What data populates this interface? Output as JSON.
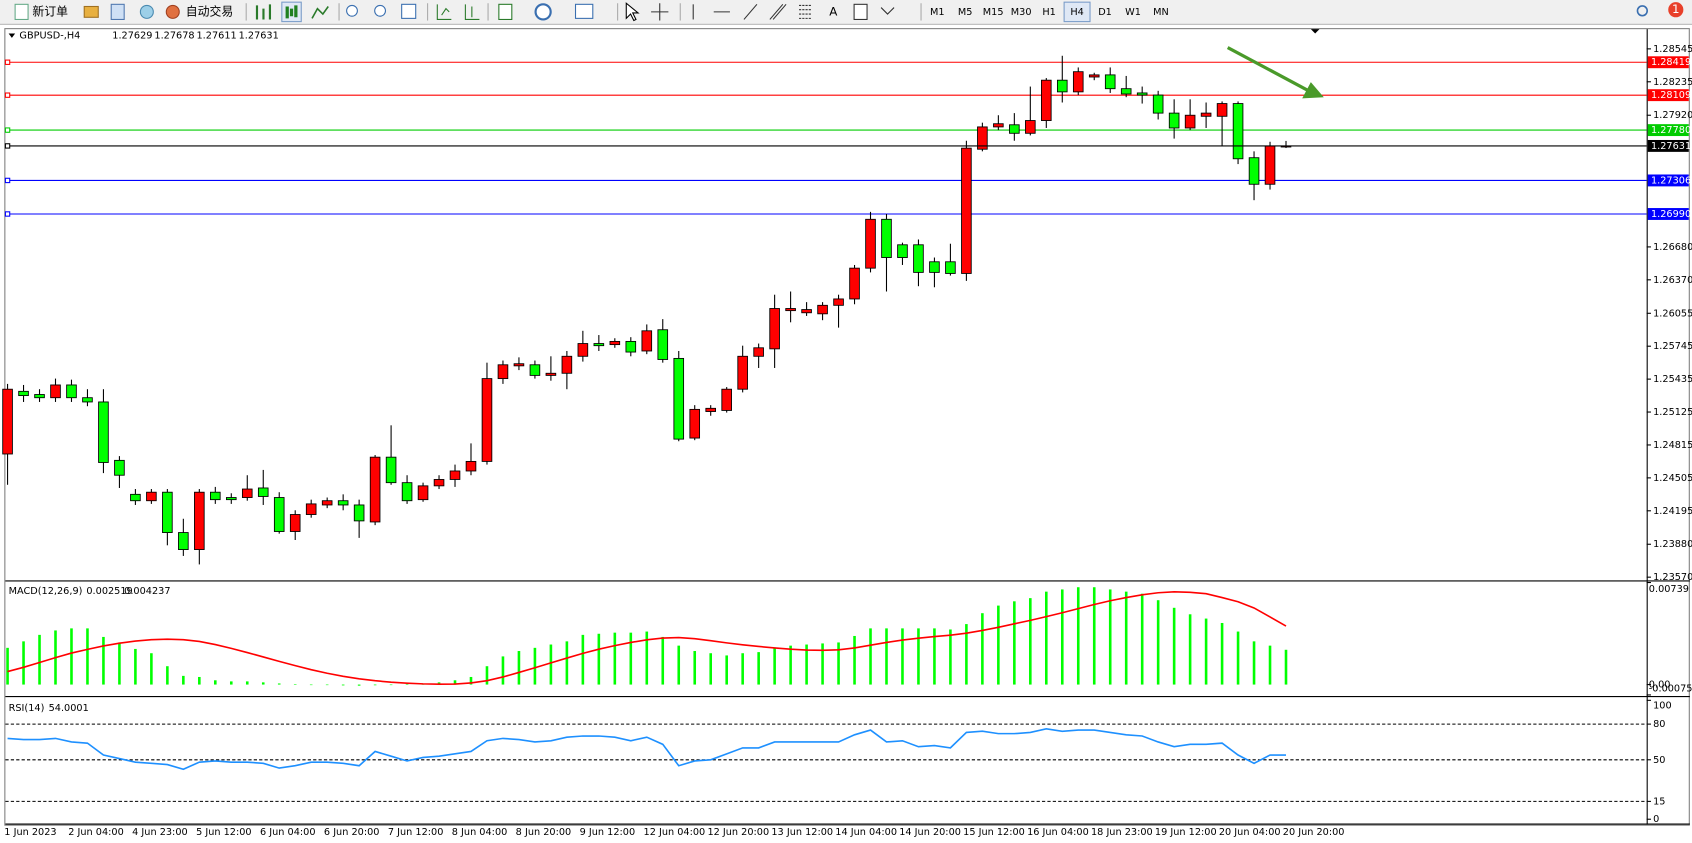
{
  "toolbar": {
    "new_order": "新订单",
    "auto_trading": "自动交易",
    "timeframes": [
      "M1",
      "M5",
      "M15",
      "M30",
      "H1",
      "H4",
      "D1",
      "W1",
      "MN"
    ],
    "active_timeframe": "H4",
    "notifications": 1
  },
  "chart_data": [
    {
      "type": "candlestick",
      "symbol": "GBPUSD-,H4",
      "categories": [
        "1 Jun 2023",
        null,
        null,
        null,
        "2 Jun 04:00",
        null,
        null,
        null,
        "4 Jun 23:00",
        null,
        null,
        null,
        "5 Jun 12:00",
        null,
        null,
        null,
        "6 Jun 04:00",
        null,
        null,
        null,
        "6 Jun 20:00",
        null,
        null,
        null,
        "7 Jun 12:00",
        null,
        null,
        null,
        "8 Jun 04:00",
        null,
        null,
        null,
        "8 Jun 20:00",
        null,
        null,
        null,
        "9 Jun 12:00",
        null,
        null,
        null,
        "12 Jun 04:00",
        null,
        null,
        null,
        "12 Jun 20:00",
        null,
        null,
        null,
        "13 Jun 12:00",
        null,
        null,
        null,
        "14 Jun 04:00",
        null,
        null,
        null,
        "14 Jun 20:00",
        null,
        null,
        null,
        "15 Jun 12:00",
        null,
        null,
        null,
        "16 Jun 04:00",
        null,
        null,
        null,
        "18 Jun 23:00",
        null,
        null,
        null,
        "19 Jun 12:00",
        null,
        null,
        null,
        "20 Jun 04:00",
        null,
        null,
        null,
        "20 Jun 20:00"
      ],
      "open": [
        1.2473,
        1.2532,
        1.2529,
        1.2526,
        1.2538,
        1.2526,
        1.2522,
        1.2467,
        1.2435,
        1.2429,
        1.2437,
        1.2399,
        1.2383,
        1.2437,
        1.2432,
        1.2432,
        1.2441,
        1.2432,
        1.24,
        1.2416,
        1.2425,
        1.2429,
        1.2425,
        1.2409,
        1.247,
        1.2446,
        1.243,
        1.2443,
        1.2449,
        1.2457,
        1.2466,
        1.2544,
        1.2556,
        1.2557,
        1.2547,
        1.2549,
        1.2565,
        1.2577,
        1.2576,
        1.2579,
        1.257,
        1.259,
        1.2563,
        1.2488,
        1.2513,
        1.2514,
        1.2534,
        1.2565,
        1.2572,
        1.2608,
        1.2606,
        1.2605,
        1.2613,
        1.2619,
        1.2648,
        1.2694,
        1.267,
        1.267,
        1.2654,
        1.2654,
        1.2643,
        1.276,
        1.2781,
        1.2783,
        1.2775,
        1.2787,
        1.2825,
        1.2814,
        1.2828,
        1.283,
        1.2817,
        1.2813,
        1.2811,
        1.2794,
        1.278,
        1.2791,
        1.2791,
        1.2803,
        1.2752,
        1.2727,
        1.27629
      ],
      "high": [
        1.2539,
        1.2538,
        1.2534,
        1.2544,
        1.2543,
        1.2534,
        1.2534,
        1.2471,
        1.244,
        1.244,
        1.244,
        1.2412,
        1.244,
        1.2442,
        1.2436,
        1.2453,
        1.2458,
        1.2437,
        1.242,
        1.243,
        1.2432,
        1.2435,
        1.243,
        1.2472,
        1.25,
        1.2453,
        1.2446,
        1.2453,
        1.2463,
        1.2483,
        1.2559,
        1.2561,
        1.2564,
        1.2561,
        1.2565,
        1.257,
        1.2589,
        1.2585,
        1.2582,
        1.2583,
        1.2595,
        1.26,
        1.257,
        1.2519,
        1.2519,
        1.2536,
        1.2575,
        1.2577,
        1.2623,
        1.2626,
        1.2616,
        1.2616,
        1.2623,
        1.2651,
        1.2701,
        1.2699,
        1.2672,
        1.2675,
        1.2658,
        1.2671,
        1.2768,
        1.2785,
        1.2792,
        1.2794,
        1.2819,
        1.2827,
        1.2848,
        1.2837,
        1.2832,
        1.2837,
        1.2829,
        1.2819,
        1.2815,
        1.2807,
        1.2807,
        1.2804,
        1.2805,
        1.2805,
        1.2758,
        1.2767,
        1.27678
      ],
      "low": [
        1.2444,
        1.2522,
        1.2522,
        1.2522,
        1.2522,
        1.2518,
        1.2455,
        1.2441,
        1.2425,
        1.2426,
        1.2387,
        1.2377,
        1.2369,
        1.2426,
        1.2426,
        1.2429,
        1.2425,
        1.2398,
        1.2392,
        1.2413,
        1.2422,
        1.242,
        1.2394,
        1.2406,
        1.2444,
        1.2426,
        1.2428,
        1.244,
        1.2442,
        1.2453,
        1.2463,
        1.2539,
        1.2552,
        1.2544,
        1.2542,
        1.2534,
        1.256,
        1.257,
        1.2573,
        1.2565,
        1.2567,
        1.2559,
        1.2485,
        1.2486,
        1.2509,
        1.2512,
        1.2531,
        1.2554,
        1.2554,
        1.2597,
        1.2603,
        1.2599,
        1.2592,
        1.2614,
        1.2644,
        1.2626,
        1.2651,
        1.2631,
        1.263,
        1.2641,
        1.2636,
        1.2758,
        1.2778,
        1.2768,
        1.2773,
        1.278,
        1.2804,
        1.2811,
        1.2825,
        1.2813,
        1.2809,
        1.2803,
        1.2788,
        1.277,
        1.2778,
        1.278,
        1.2763,
        1.2746,
        1.2712,
        1.2722,
        1.27611
      ],
      "close": [
        1.2534,
        1.2528,
        1.2526,
        1.2538,
        1.2526,
        1.2522,
        1.2465,
        1.2453,
        1.2429,
        1.2437,
        1.2399,
        1.2383,
        1.2437,
        1.243,
        1.243,
        1.244,
        1.2433,
        1.24,
        1.2416,
        1.2426,
        1.2429,
        1.2425,
        1.241,
        1.247,
        1.2446,
        1.2429,
        1.2443,
        1.2449,
        1.2457,
        1.2466,
        1.2544,
        1.2557,
        1.2558,
        1.2547,
        1.2549,
        1.2565,
        1.2577,
        1.2575,
        1.2579,
        1.2569,
        1.2589,
        1.2562,
        1.2487,
        1.2515,
        1.2516,
        1.2534,
        1.2565,
        1.2573,
        1.261,
        1.261,
        1.2609,
        1.2613,
        1.2619,
        1.2648,
        1.2694,
        1.2658,
        1.2658,
        1.2644,
        1.2644,
        1.2643,
        1.2761,
        1.2781,
        1.2784,
        1.2775,
        1.2787,
        1.2825,
        1.2814,
        1.2833,
        1.283,
        1.2817,
        1.2812,
        1.2811,
        1.2794,
        1.278,
        1.2792,
        1.2794,
        1.2803,
        1.2751,
        1.2727,
        1.2763,
        1.27631
      ],
      "up_color": "#ff0000",
      "down_color": "#00ff00",
      "current_price_color": "#000000",
      "ylim": [
        1.2355,
        1.2871
      ],
      "yticks": [
        1.28545,
        1.28235,
        {
          "value": 1.2792,
          "label": "1.27920"
        },
        {
          "value": 1.2668,
          "label": "1.26680"
        },
        {
          "value": 1.2637,
          "label": "1.26370"
        },
        1.26055,
        1.25745,
        1.25435,
        1.25125,
        1.24815,
        1.24505,
        1.24195,
        {
          "value": 1.2388,
          "label": "1.23880"
        },
        {
          "value": 1.2357,
          "label": "1.23570"
        }
      ],
      "levels": [
        {
          "value": 1.28419,
          "color": "#ff0000"
        },
        {
          "value": 1.28109,
          "color": "#ff0000"
        },
        {
          "value": 1.2778,
          "label": "1.27780",
          "color": "#00cc00"
        },
        {
          "value": 1.27306,
          "color": "#0000ff"
        },
        {
          "value": 1.2699,
          "label": "1.26990",
          "color": "#0000ff"
        }
      ],
      "grid": false
    },
    {
      "type": "macd",
      "title": "MACD(12,26,9)",
      "histogram": [
        0.00266,
        0.00313,
        0.0036,
        0.00392,
        0.00407,
        0.00407,
        0.00345,
        0.00305,
        0.00258,
        0.00227,
        0.00133,
        0.00063,
        0.00055,
        0.00031,
        0.00023,
        0.00023,
        0.00016,
        8e-05,
        3e-05,
        -2e-05,
        -4e-05,
        -6e-05,
        -8e-05,
        -5e-05,
        -2e-05,
        1e-05,
        3e-05,
        0.00016,
        0.00031,
        0.00055,
        0.00133,
        0.00204,
        0.00243,
        0.00266,
        0.0029,
        0.00313,
        0.0036,
        0.00368,
        0.00376,
        0.00376,
        0.00384,
        0.00345,
        0.00282,
        0.00243,
        0.00227,
        0.00211,
        0.00227,
        0.00235,
        0.00266,
        0.00282,
        0.0029,
        0.00298,
        0.00305,
        0.00352,
        0.00407,
        0.00407,
        0.00407,
        0.00407,
        0.00407,
        0.00399,
        0.00438,
        0.00517,
        0.00572,
        0.00603,
        0.00626,
        0.00673,
        0.00689,
        0.00705,
        0.00705,
        0.00689,
        0.00673,
        0.00658,
        0.00611,
        0.00556,
        0.00509,
        0.00478,
        0.00446,
        0.00384,
        0.00313,
        0.00282,
        0.002519
      ],
      "signal": [
        0.00094,
        0.00125,
        0.0016,
        0.00195,
        0.00228,
        0.00255,
        0.0028,
        0.003,
        0.00315,
        0.00325,
        0.00329,
        0.00325,
        0.00312,
        0.0029,
        0.00262,
        0.00232,
        0.002,
        0.00168,
        0.00137,
        0.00108,
        0.00082,
        0.0006,
        0.00042,
        0.00028,
        0.00017,
        0.0001,
        5e-05,
        3e-05,
        4e-05,
        0.00012,
        0.00028,
        0.00055,
        0.00088,
        0.00122,
        0.00157,
        0.00192,
        0.00226,
        0.00256,
        0.00282,
        0.00305,
        0.00324,
        0.00337,
        0.0034,
        0.00332,
        0.00318,
        0.00302,
        0.00288,
        0.00276,
        0.00265,
        0.00256,
        0.0025,
        0.00248,
        0.00252,
        0.00265,
        0.00285,
        0.00305,
        0.00322,
        0.00336,
        0.00348,
        0.00358,
        0.00372,
        0.00392,
        0.00415,
        0.0044,
        0.00465,
        0.00492,
        0.0052,
        0.0055,
        0.0058,
        0.00607,
        0.0063,
        0.0065,
        0.00665,
        0.00672,
        0.00668,
        0.00658,
        0.0063,
        0.006,
        0.00555,
        0.0049,
        0.004237
      ],
      "histogram_color": "#00ff00",
      "signal_color": "#ff0000",
      "ylim": [
        -0.000751,
        0.00739
      ],
      "yticks": [
        0.00739,
        {
          "value": 0,
          "label": "0.00"
        },
        -0.000751
      ]
    },
    {
      "type": "rsi",
      "title": "RSI(14)",
      "values": [
        68,
        67,
        67,
        68,
        65,
        64,
        54,
        51,
        48,
        47,
        46,
        42,
        48,
        49,
        48,
        48,
        47,
        43,
        45,
        48,
        48,
        47,
        45,
        57,
        53,
        49,
        52,
        53,
        55,
        57,
        66,
        68,
        67,
        65,
        66,
        69,
        70,
        70,
        69,
        66,
        69,
        63,
        45,
        49,
        50,
        55,
        60,
        60,
        65,
        65,
        65,
        65,
        65,
        71,
        75,
        65,
        66,
        61,
        62,
        60,
        73,
        74,
        72,
        72,
        73,
        76,
        74,
        75,
        75,
        73,
        71,
        70,
        65,
        61,
        63,
        63,
        64,
        54,
        47,
        54,
        54.0001
      ],
      "color": "#1e90ff",
      "ylim": [
        0,
        100
      ],
      "yticks": [
        100,
        80,
        50,
        15,
        0
      ],
      "dashed_levels": [
        80,
        50,
        15
      ]
    }
  ]
}
